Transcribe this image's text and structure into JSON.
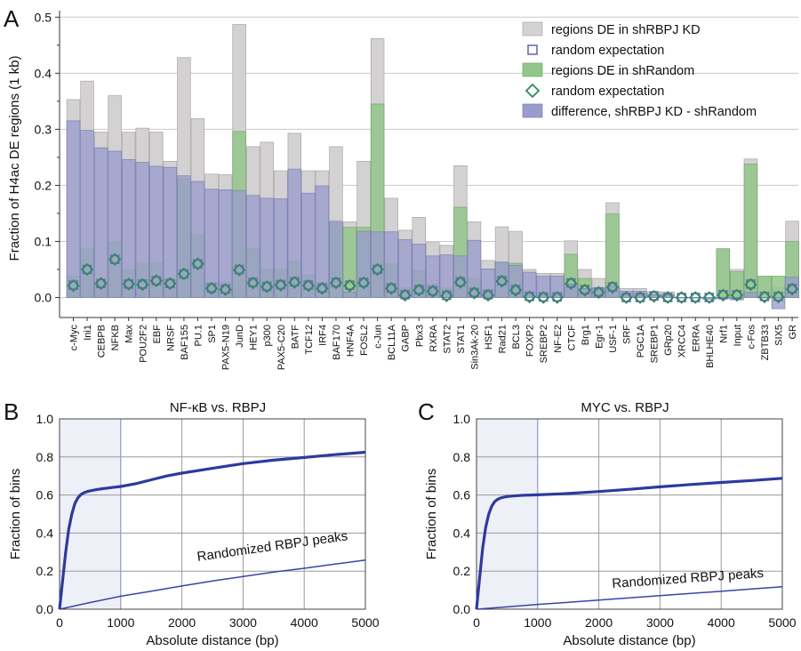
{
  "panels": {
    "a": "A",
    "b": "B",
    "c": "C"
  },
  "chart_data": [
    {
      "type": "bar",
      "ylabel": "Fraction of H4ac DE regions (1 kb)",
      "ylim": [
        -0.05,
        0.52
      ],
      "yticks": [
        "0.0",
        "0.1",
        "0.2",
        "0.3",
        "0.4",
        "0.5"
      ],
      "grid": true,
      "legend_position": "top-right",
      "categories": [
        "c-Myc",
        "Ini1",
        "CEBPB",
        "NFKB",
        "Max",
        "POU2F2",
        "EBF",
        "NRSF",
        "BAF155",
        "PU.1",
        "SP1",
        "PAX5-N19",
        "JunD",
        "HEY1",
        "p300",
        "PAX5-C20",
        "BATF",
        "TCF12",
        "IRF4",
        "BAF170",
        "HNF4A",
        "FOSL2",
        "c-Jun",
        "BCL11A",
        "GABP",
        "Pbx3",
        "RXRA",
        "STAT2",
        "STAT1",
        "Sin3Ak-20",
        "HSF1",
        "Rad21",
        "BCL3",
        "FOXP2",
        "SREBP2",
        "NF-E2",
        "CTCF",
        "Brg1",
        "Egr-1",
        "USF-1",
        "SRF",
        "PGC1A",
        "SREBP1",
        "GRp20",
        "XRCC4",
        "ERRA",
        "BHLHE40",
        "Nrf1",
        "Input",
        "c-Fos",
        "ZBTB33",
        "SIX5",
        "GR"
      ],
      "series": [
        {
          "name": "regions DE in shRBPJ KD",
          "color": "#d4d1d3",
          "values": [
            0.353,
            0.386,
            0.295,
            0.36,
            0.295,
            0.302,
            0.295,
            0.243,
            0.428,
            0.319,
            0.22,
            0.219,
            0.487,
            0.269,
            0.277,
            0.226,
            0.293,
            0.226,
            0.226,
            0.269,
            0.135,
            0.243,
            0.462,
            0.177,
            0.12,
            0.143,
            0.098,
            0.093,
            0.235,
            0.135,
            0.066,
            0.126,
            0.118,
            0.05,
            0.043,
            0.043,
            0.101,
            0.05,
            0.034,
            0.169,
            0.016,
            0.016,
            0.01,
            0.01,
            0.0,
            0.0,
            0.0,
            0.085,
            0.05,
            0.247,
            0.037,
            0.018,
            0.136
          ]
        },
        {
          "name": "random expectation",
          "color": "#6c6cb4",
          "values": [
            0.022,
            0.05,
            0.025,
            0.068,
            0.024,
            0.024,
            0.03,
            0.025,
            0.042,
            0.06,
            0.017,
            0.015,
            0.05,
            0.027,
            0.02,
            0.023,
            0.028,
            0.022,
            0.017,
            0.027,
            0.022,
            0.027,
            0.05,
            0.017,
            0.005,
            0.014,
            0.012,
            0.004,
            0.028,
            0.009,
            0.005,
            0.03,
            0.014,
            0.002,
            0.001,
            0.001,
            0.026,
            0.014,
            0.01,
            0.019,
            0.0,
            0.0,
            0.003,
            0.0,
            0.0,
            0.0,
            0.0,
            0.005,
            0.005,
            0.024,
            0.002,
            0.002,
            0.016
          ]
        },
        {
          "name": "regions DE in shRandom",
          "color": "#93c68a",
          "values": [
            0.038,
            0.088,
            0.028,
            0.099,
            0.049,
            0.061,
            0.061,
            0.031,
            0.211,
            0.112,
            0.027,
            0.027,
            0.296,
            0.087,
            0.05,
            0.05,
            0.064,
            0.04,
            0.027,
            0.133,
            0.125,
            0.125,
            0.345,
            0.06,
            0.017,
            0.048,
            0.024,
            0.017,
            0.161,
            0.033,
            0.015,
            0.063,
            0.061,
            0.005,
            0.005,
            0.005,
            0.077,
            0.034,
            0.017,
            0.149,
            0.005,
            0.005,
            0.005,
            0.005,
            0.0,
            0.0,
            0.0,
            0.087,
            0.046,
            0.238,
            0.038,
            0.038,
            0.1
          ]
        },
        {
          "name": "random expectation",
          "color": "#2e8a62",
          "values": [
            0.021,
            0.05,
            0.025,
            0.068,
            0.024,
            0.023,
            0.03,
            0.025,
            0.042,
            0.06,
            0.016,
            0.014,
            0.049,
            0.026,
            0.019,
            0.022,
            0.027,
            0.021,
            0.016,
            0.026,
            0.021,
            0.026,
            0.05,
            0.016,
            0.004,
            0.013,
            0.011,
            0.003,
            0.027,
            0.008,
            0.004,
            0.029,
            0.013,
            0.001,
            0.0,
            0.0,
            0.025,
            0.013,
            0.009,
            0.018,
            0.0,
            0.0,
            0.002,
            0.0,
            0.0,
            0.0,
            0.0,
            0.004,
            0.004,
            0.023,
            0.001,
            0.001,
            0.015
          ]
        },
        {
          "name": "difference, shRBPJ KD - shRandom",
          "color": "#9a9ccc",
          "values": [
            0.315,
            0.298,
            0.267,
            0.261,
            0.246,
            0.241,
            0.234,
            0.232,
            0.217,
            0.207,
            0.193,
            0.192,
            0.191,
            0.182,
            0.177,
            0.176,
            0.229,
            0.186,
            0.199,
            0.136,
            0.01,
            0.118,
            0.117,
            0.117,
            0.103,
            0.095,
            0.074,
            0.076,
            0.074,
            0.102,
            0.051,
            0.063,
            0.057,
            0.045,
            0.038,
            0.038,
            0.024,
            0.016,
            0.017,
            0.02,
            0.011,
            0.011,
            0.005,
            0.005,
            0.0,
            0.0,
            -0.003,
            -0.002,
            -0.004,
            0.009,
            -0.001,
            -0.02,
            0.036
          ]
        }
      ]
    },
    {
      "type": "line",
      "title": "NF-κB vs. RBPJ",
      "xlabel": "Absolute distance (bp)",
      "ylabel": "Fraction of bins",
      "xlim": [
        0,
        5000
      ],
      "ylim": [
        0,
        1.0
      ],
      "xticks": [
        "0",
        "1000",
        "2000",
        "3000",
        "4000",
        "5000"
      ],
      "yticks": [
        "0.0",
        "0.2",
        "0.4",
        "0.6",
        "0.8",
        "1.0"
      ],
      "shaded_region": [
        0,
        1000
      ],
      "annotation": "Randomized RBPJ peaks",
      "series": [
        {
          "role": "observed",
          "x": [
            0,
            50,
            100,
            150,
            200,
            250,
            300,
            350,
            400,
            450,
            500,
            600,
            700,
            800,
            900,
            1000,
            1250,
            1500,
            1750,
            2000,
            2500,
            3000,
            3500,
            4000,
            4500,
            5000
          ],
          "y": [
            0.0,
            0.15,
            0.3,
            0.42,
            0.5,
            0.555,
            0.585,
            0.603,
            0.612,
            0.618,
            0.622,
            0.628,
            0.633,
            0.637,
            0.641,
            0.645,
            0.66,
            0.68,
            0.7,
            0.715,
            0.74,
            0.765,
            0.783,
            0.797,
            0.812,
            0.825
          ]
        },
        {
          "role": "randomized",
          "x": [
            0,
            500,
            1000,
            1500,
            2000,
            2500,
            3000,
            3500,
            4000,
            4500,
            5000
          ],
          "y": [
            0.0,
            0.035,
            0.068,
            0.095,
            0.122,
            0.148,
            0.172,
            0.195,
            0.215,
            0.237,
            0.258
          ]
        }
      ]
    },
    {
      "type": "line",
      "title": "MYC vs. RBPJ",
      "xlabel": "Absolute distance (bp)",
      "ylabel": "Fraction of bins",
      "xlim": [
        0,
        5000
      ],
      "ylim": [
        0,
        1.0
      ],
      "xticks": [
        "0",
        "1000",
        "2000",
        "3000",
        "4000",
        "5000"
      ],
      "yticks": [
        "0.0",
        "0.2",
        "0.4",
        "0.6",
        "0.8",
        "1.0"
      ],
      "shaded_region": [
        0,
        1000
      ],
      "annotation": "Randomized RBPJ peaks",
      "series": [
        {
          "role": "observed",
          "x": [
            0,
            50,
            100,
            150,
            200,
            250,
            300,
            350,
            400,
            450,
            500,
            600,
            700,
            800,
            900,
            1000,
            1500,
            2000,
            2500,
            3000,
            3500,
            4000,
            4500,
            5000
          ],
          "y": [
            0.0,
            0.16,
            0.32,
            0.43,
            0.5,
            0.542,
            0.566,
            0.578,
            0.585,
            0.589,
            0.592,
            0.595,
            0.597,
            0.599,
            0.6,
            0.601,
            0.608,
            0.618,
            0.63,
            0.643,
            0.655,
            0.666,
            0.676,
            0.688
          ]
        },
        {
          "role": "randomized",
          "x": [
            0,
            500,
            1000,
            1500,
            2000,
            2500,
            3000,
            3500,
            4000,
            4500,
            5000
          ],
          "y": [
            0.0,
            0.012,
            0.025,
            0.036,
            0.048,
            0.06,
            0.071,
            0.083,
            0.094,
            0.106,
            0.118
          ]
        }
      ]
    }
  ]
}
